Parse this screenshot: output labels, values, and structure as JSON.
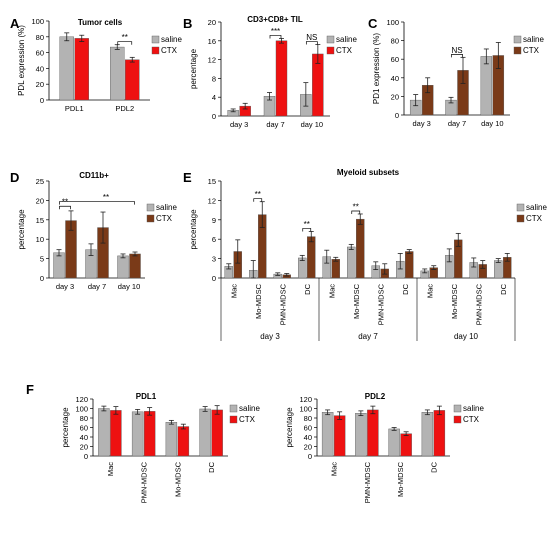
{
  "colors": {
    "saline": "#b3b3b3",
    "ctx_red": "#ee1111",
    "ctx_brown": "#7a3a18",
    "axis": "#000000"
  },
  "chart_data": [
    {
      "id": "A",
      "panel_label": "A",
      "type": "bar",
      "title": "Tumor cells",
      "xlabel": "",
      "ylabel": "PDL expression (%)",
      "ylim": [
        0,
        100
      ],
      "yticks": [
        0,
        20,
        40,
        60,
        80,
        100
      ],
      "categories": [
        "PDL1",
        "PDL2"
      ],
      "series": [
        {
          "name": "saline",
          "color": "#b3b3b3",
          "values": [
            80,
            67
          ],
          "errors": [
            5,
            3
          ]
        },
        {
          "name": "CTX",
          "color": "#ee1111",
          "values": [
            78,
            51
          ],
          "errors": [
            4,
            3
          ]
        }
      ],
      "annotations": [
        {
          "text": "**",
          "group": 1
        }
      ],
      "legend": "right"
    },
    {
      "id": "B",
      "panel_label": "B",
      "type": "bar",
      "title": "CD3+CD8+ TIL",
      "xlabel": "",
      "ylabel": "percentage",
      "ylim": [
        0,
        20
      ],
      "yticks": [
        0,
        4,
        8,
        12,
        16,
        20
      ],
      "categories": [
        "day 3",
        "day 7",
        "day 10"
      ],
      "series": [
        {
          "name": "saline",
          "color": "#b3b3b3",
          "values": [
            1.2,
            4.2,
            4.6
          ],
          "errors": [
            0.3,
            0.8,
            2.5
          ]
        },
        {
          "name": "CTX",
          "color": "#ee1111",
          "values": [
            2.1,
            16,
            13.2
          ],
          "errors": [
            0.6,
            0.5,
            2
          ]
        }
      ],
      "annotations": [
        {
          "text": "***",
          "group": 1
        },
        {
          "text": "NS",
          "group": 2
        }
      ],
      "legend": "right"
    },
    {
      "id": "C",
      "panel_label": "C",
      "type": "bar",
      "title": "",
      "xlabel": "",
      "ylabel": "PD1 expression (%)",
      "ylim": [
        0,
        100
      ],
      "yticks": [
        0,
        20,
        40,
        60,
        80,
        100
      ],
      "categories": [
        "day 3",
        "day 7",
        "day 10"
      ],
      "series": [
        {
          "name": "saline",
          "color": "#b3b3b3",
          "values": [
            16,
            16,
            63
          ],
          "errors": [
            6,
            3,
            8
          ]
        },
        {
          "name": "CTX",
          "color": "#7a3a18",
          "values": [
            32,
            48,
            64
          ],
          "errors": [
            8,
            14,
            14
          ]
        }
      ],
      "annotations": [
        {
          "text": "NS",
          "group": 1
        }
      ],
      "legend": "right"
    },
    {
      "id": "D",
      "panel_label": "D",
      "type": "bar",
      "title": "CD11b+",
      "xlabel": "",
      "ylabel": "percentage",
      "ylim": [
        0,
        25
      ],
      "yticks": [
        0,
        5,
        10,
        15,
        20,
        25
      ],
      "categories": [
        "day 3",
        "day 7",
        "day 10"
      ],
      "series": [
        {
          "name": "saline",
          "color": "#b3b3b3",
          "values": [
            6.5,
            7.3,
            5.7
          ],
          "errors": [
            0.8,
            1.5,
            0.5
          ]
        },
        {
          "name": "CTX",
          "color": "#7a3a18",
          "values": [
            14.8,
            13,
            6.2
          ],
          "errors": [
            2.5,
            4,
            0.5
          ]
        }
      ],
      "annotations": [
        {
          "text": "**",
          "from": 0,
          "to": 0
        },
        {
          "text": "**",
          "from": 0,
          "to": 2
        }
      ],
      "legend": "right"
    },
    {
      "id": "E",
      "panel_label": "E",
      "type": "bar",
      "title": "Myeloid subsets",
      "xlabel": "",
      "ylabel": "percentage",
      "ylim": [
        0,
        15
      ],
      "yticks": [
        0,
        3,
        6,
        9,
        12,
        15
      ],
      "categories": [
        "Mac",
        "Mo-MDSC",
        "PMN-MDSC",
        "DC",
        "Mac",
        "Mo-MDSC",
        "PMN-MDSC",
        "DC",
        "Mac",
        "Mo-MDSC",
        "PMN-MDSC",
        "DC"
      ],
      "groups": [
        "day 3",
        "day 7",
        "day 10"
      ],
      "series": [
        {
          "name": "saline",
          "color": "#b3b3b3",
          "values": [
            1.8,
            1.2,
            0.6,
            3.1,
            3.3,
            4.8,
            1.9,
            2.6,
            1.1,
            3.5,
            2.4,
            2.7
          ],
          "errors": [
            0.4,
            1.5,
            0.2,
            0.4,
            1,
            0.4,
            0.6,
            1.2,
            0.3,
            1,
            0.7,
            0.3
          ]
        },
        {
          "name": "CTX",
          "color": "#7a3a18",
          "values": [
            4.1,
            9.8,
            0.5,
            6.4,
            2.9,
            9.1,
            1.4,
            4.1,
            1.6,
            5.9,
            2.1,
            3.2
          ],
          "errors": [
            1.8,
            2,
            0.2,
            0.8,
            0.3,
            0.8,
            0.8,
            0.3,
            0.3,
            1,
            0.6,
            0.6
          ]
        }
      ],
      "annotations": [
        {
          "text": "**",
          "group": 1
        },
        {
          "text": "**",
          "group": 3
        },
        {
          "text": "**",
          "group": 5
        }
      ],
      "legend": "right"
    },
    {
      "id": "F1",
      "panel_label": "F",
      "type": "bar",
      "title": "PDL1",
      "xlabel": "",
      "ylabel": "percentage",
      "ylim": [
        0,
        120
      ],
      "yticks": [
        0,
        20,
        40,
        60,
        80,
        100,
        120
      ],
      "categories": [
        "Mac",
        "PMN-MDSC",
        "Mo-MDSC",
        "DC"
      ],
      "series": [
        {
          "name": "saline",
          "color": "#b3b3b3",
          "values": [
            100,
            93,
            71,
            99
          ],
          "errors": [
            5,
            5,
            4,
            5
          ]
        },
        {
          "name": "CTX",
          "color": "#ee1111",
          "values": [
            96,
            94,
            62,
            97
          ],
          "errors": [
            8,
            8,
            5,
            9
          ]
        }
      ],
      "annotations": [],
      "legend": "right"
    },
    {
      "id": "F2",
      "panel_label": "",
      "type": "bar",
      "title": "PDL2",
      "xlabel": "",
      "ylabel": "percentage",
      "ylim": [
        0,
        120
      ],
      "yticks": [
        0,
        20,
        40,
        60,
        80,
        100,
        120
      ],
      "categories": [
        "Mac",
        "PMN-MDSC",
        "Mo-MDSC",
        "DC"
      ],
      "series": [
        {
          "name": "saline",
          "color": "#b3b3b3",
          "values": [
            92,
            90,
            57,
            92
          ],
          "errors": [
            5,
            5,
            3,
            5
          ]
        },
        {
          "name": "CTX",
          "color": "#ee1111",
          "values": [
            85,
            97,
            47,
            96
          ],
          "errors": [
            8,
            8,
            4,
            9
          ]
        }
      ],
      "annotations": [],
      "legend": "right"
    }
  ]
}
